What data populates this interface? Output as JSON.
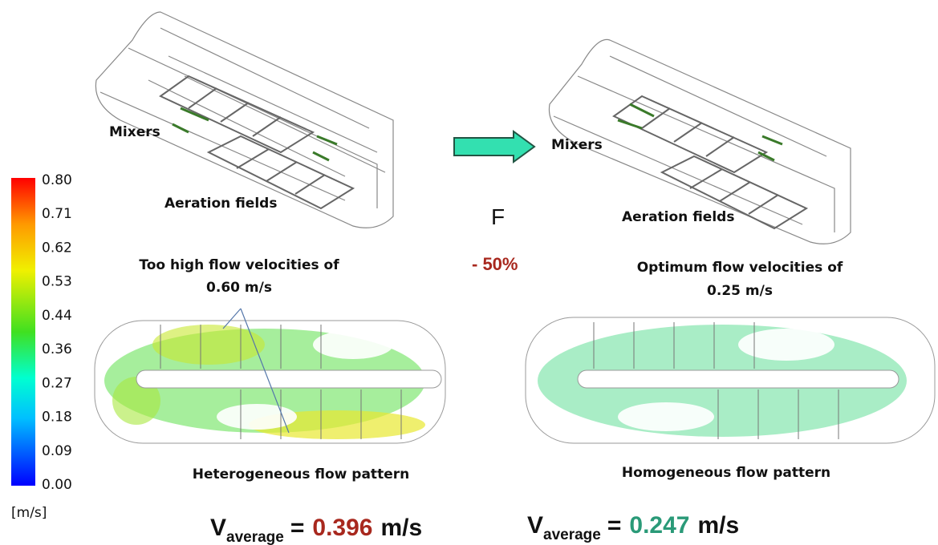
{
  "colorbar": {
    "ticks": [
      "0.80",
      "0.71",
      "0.62",
      "0.53",
      "0.44",
      "0.36",
      "0.27",
      "0.18",
      "0.09",
      "0.00"
    ],
    "unit": "[m/s]"
  },
  "left": {
    "mixers": "Mixers",
    "aeration": "Aeration fields",
    "note_line1": "Too high flow velocities of",
    "note_line2": "0.60 m/s",
    "pattern": "Heterogeneous flow pattern",
    "velocity": {
      "symbol": "V",
      "subscript": "average",
      "equals": "=",
      "value": "0.396",
      "unit": "m/s"
    }
  },
  "center": {
    "letter": "F",
    "change": "- 50%"
  },
  "right": {
    "mixers": "Mixers",
    "aeration": "Aeration fields",
    "note_line1": "Optimum flow velocities of",
    "note_line2": "0.25 m/s",
    "pattern": "Homogeneous flow pattern",
    "velocity": {
      "symbol": "V",
      "subscript": "average",
      "equals": "=",
      "value": "0.247",
      "unit": "m/s"
    }
  }
}
